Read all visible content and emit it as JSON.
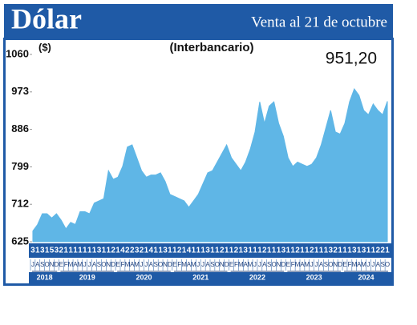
{
  "chart_data": {
    "type": "area",
    "title": "Dólar",
    "subtitle": "Venta al 21 de octubre",
    "annotation": "(Interbancario)",
    "unit_label": "($)",
    "current_value": "951,20",
    "color": "#5fb6e6",
    "ylim": [
      625,
      1060
    ],
    "yticks": [
      625,
      712,
      799,
      886,
      973,
      1060
    ],
    "categories": [
      "J",
      "A",
      "S",
      "O",
      "N",
      "D",
      "E",
      "F",
      "M",
      "A",
      "M",
      "J",
      "J",
      "A",
      "S",
      "O",
      "N",
      "D",
      "E",
      "F",
      "M",
      "A",
      "M",
      "J",
      "J",
      "A",
      "S",
      "O",
      "N",
      "D",
      "E",
      "F",
      "M",
      "A",
      "M",
      "J",
      "J",
      "A",
      "S",
      "O",
      "N",
      "D",
      "E",
      "F",
      "M",
      "A",
      "M",
      "J",
      "J",
      "A",
      "S",
      "O",
      "N",
      "D",
      "E",
      "F",
      "M",
      "A",
      "M",
      "J",
      "J",
      "A",
      "S",
      "O",
      "N",
      "D",
      "E",
      "F",
      "M",
      "A",
      "M",
      "J",
      "J",
      "A",
      "S",
      "O"
    ],
    "day_labels": [
      "3",
      "1",
      "3",
      "1",
      "5",
      "3",
      "2",
      "1",
      "1",
      "1",
      "1",
      "1",
      "1",
      "1",
      "3",
      "1",
      "1",
      "2",
      "1",
      "4",
      "2",
      "2",
      "3",
      "2",
      "1",
      "4",
      "1",
      "1",
      "3",
      "1",
      "1",
      "2",
      "1",
      "4",
      "1",
      "1",
      "1",
      "3",
      "1",
      "1",
      "2",
      "1",
      "1",
      "2",
      "1",
      "3",
      "1",
      "1",
      "1",
      "2",
      "1",
      "1",
      "1",
      "3",
      "1",
      "1",
      "2",
      "1",
      "1",
      "2",
      "1",
      "1",
      "1",
      "3",
      "2",
      "1",
      "1",
      "1",
      "3",
      "1",
      "3",
      "1",
      "1",
      "2",
      "2",
      "1"
    ],
    "years": [
      "2018",
      "2019",
      "2020",
      "2021",
      "2022",
      "2023",
      "2024"
    ],
    "values": [
      650,
      665,
      690,
      690,
      680,
      690,
      675,
      655,
      670,
      665,
      695,
      695,
      690,
      715,
      720,
      725,
      790,
      770,
      775,
      800,
      845,
      850,
      820,
      790,
      775,
      780,
      780,
      785,
      765,
      735,
      730,
      725,
      720,
      705,
      720,
      735,
      760,
      785,
      790,
      810,
      830,
      850,
      820,
      805,
      790,
      810,
      840,
      880,
      950,
      900,
      940,
      950,
      900,
      870,
      820,
      800,
      810,
      805,
      800,
      805,
      820,
      850,
      890,
      930,
      880,
      875,
      900,
      950,
      980,
      965,
      930,
      920,
      945,
      930,
      920,
      951.2
    ]
  }
}
